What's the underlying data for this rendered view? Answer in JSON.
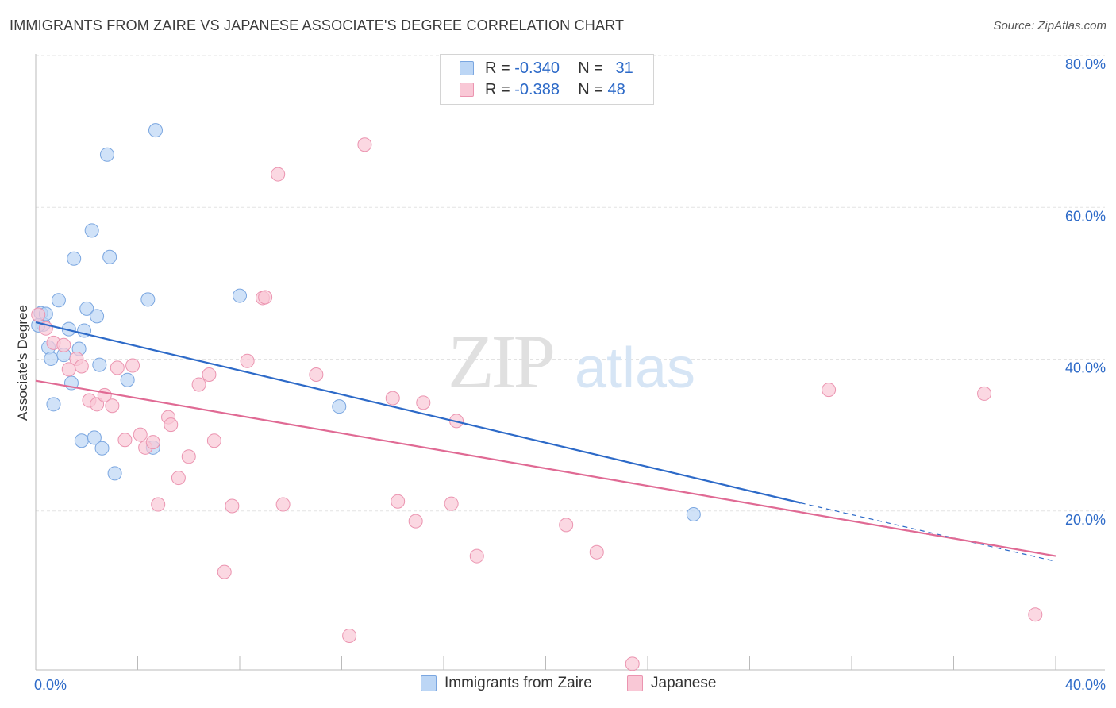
{
  "title": "IMMIGRANTS FROM ZAIRE VS JAPANESE ASSOCIATE'S DEGREE CORRELATION CHART",
  "source": "Source: ZipAtlas.com",
  "watermark": {
    "zip": "ZIP",
    "atlas": "atlas"
  },
  "legend": {
    "r_label": "R =",
    "n_label": "N =",
    "rows": [
      {
        "r": "-0.340",
        "n": "31",
        "fill": "#bcd6f5",
        "stroke": "#7aa6e0"
      },
      {
        "r": "-0.388",
        "n": "48",
        "fill": "#f9c8d6",
        "stroke": "#eb94b0"
      }
    ]
  },
  "bottom_legend": [
    {
      "label": "Immigrants from Zaire",
      "fill": "#bcd6f5",
      "stroke": "#7aa6e0"
    },
    {
      "label": "Japanese",
      "fill": "#f9c8d6",
      "stroke": "#eb94b0"
    }
  ],
  "chart_data": {
    "type": "scatter",
    "title": "IMMIGRANTS FROM ZAIRE VS JAPANESE ASSOCIATE'S DEGREE CORRELATION CHART",
    "xlabel": "",
    "ylabel": "Associate's Degree",
    "xlim": [
      0,
      40
    ],
    "ylim": [
      0,
      80
    ],
    "x_tick_labels": [
      "0.0%",
      "40.0%"
    ],
    "y_tick_labels": [
      "20.0%",
      "40.0%",
      "60.0%",
      "80.0%"
    ],
    "y_ticks": [
      20,
      40,
      60,
      80
    ],
    "grid": true,
    "series": [
      {
        "name": "Immigrants from Zaire",
        "color": "#2d6ac8",
        "point_fill": "#bcd6f5",
        "point_stroke": "#7aa6e0",
        "points": [
          [
            0.2,
            47.0
          ],
          [
            0.3,
            45.5
          ],
          [
            0.5,
            42.5
          ],
          [
            0.6,
            41.0
          ],
          [
            0.7,
            35.0
          ],
          [
            0.9,
            48.7
          ],
          [
            1.1,
            41.5
          ],
          [
            1.3,
            44.9
          ],
          [
            1.4,
            37.8
          ],
          [
            1.5,
            54.2
          ],
          [
            1.7,
            42.3
          ],
          [
            1.8,
            30.2
          ],
          [
            1.9,
            44.7
          ],
          [
            2.0,
            47.6
          ],
          [
            2.2,
            57.9
          ],
          [
            2.3,
            30.6
          ],
          [
            2.4,
            46.6
          ],
          [
            2.5,
            40.2
          ],
          [
            2.6,
            29.2
          ],
          [
            2.8,
            67.9
          ],
          [
            2.9,
            54.4
          ],
          [
            3.1,
            25.9
          ],
          [
            3.6,
            38.2
          ],
          [
            4.4,
            48.8
          ],
          [
            4.6,
            29.3
          ],
          [
            4.7,
            71.1
          ],
          [
            8.0,
            49.3
          ],
          [
            11.9,
            34.7
          ],
          [
            25.8,
            20.5
          ],
          [
            0.4,
            46.9
          ],
          [
            0.1,
            45.4
          ]
        ],
        "trend": {
          "x": [
            0,
            30
          ],
          "y": [
            45.8,
            22.0
          ]
        },
        "trend_dashed": {
          "x": [
            30,
            40
          ],
          "y": [
            22.0,
            14.3
          ]
        }
      },
      {
        "name": "Japanese",
        "color": "#e06a94",
        "point_fill": "#f9c8d6",
        "point_stroke": "#eb94b0",
        "points": [
          [
            0.1,
            46.8
          ],
          [
            0.4,
            45.0
          ],
          [
            0.7,
            43.1
          ],
          [
            1.1,
            42.8
          ],
          [
            1.3,
            39.6
          ],
          [
            1.6,
            41.0
          ],
          [
            1.8,
            40.0
          ],
          [
            2.1,
            35.5
          ],
          [
            2.4,
            35.0
          ],
          [
            2.7,
            36.2
          ],
          [
            3.0,
            34.8
          ],
          [
            3.2,
            39.8
          ],
          [
            3.5,
            30.3
          ],
          [
            3.8,
            40.1
          ],
          [
            4.1,
            31.0
          ],
          [
            4.3,
            29.3
          ],
          [
            4.6,
            30.0
          ],
          [
            4.8,
            21.8
          ],
          [
            5.2,
            33.3
          ],
          [
            5.3,
            32.3
          ],
          [
            5.6,
            25.3
          ],
          [
            6.0,
            28.1
          ],
          [
            6.4,
            37.6
          ],
          [
            6.8,
            38.9
          ],
          [
            7.0,
            30.2
          ],
          [
            7.4,
            12.9
          ],
          [
            7.7,
            21.6
          ],
          [
            8.3,
            40.7
          ],
          [
            8.9,
            49.0
          ],
          [
            9.0,
            49.1
          ],
          [
            9.5,
            65.3
          ],
          [
            9.7,
            21.8
          ],
          [
            11.0,
            38.9
          ],
          [
            12.3,
            4.5
          ],
          [
            12.9,
            69.2
          ],
          [
            14.0,
            35.8
          ],
          [
            14.2,
            22.2
          ],
          [
            14.9,
            19.6
          ],
          [
            15.2,
            35.2
          ],
          [
            16.3,
            21.9
          ],
          [
            16.5,
            32.8
          ],
          [
            17.3,
            15.0
          ],
          [
            20.8,
            19.1
          ],
          [
            22.0,
            15.5
          ],
          [
            23.4,
            0.8
          ],
          [
            31.1,
            36.9
          ],
          [
            37.2,
            36.4
          ],
          [
            39.2,
            7.3
          ]
        ],
        "trend": {
          "x": [
            0,
            40
          ],
          "y": [
            38.1,
            15.0
          ]
        }
      }
    ]
  }
}
